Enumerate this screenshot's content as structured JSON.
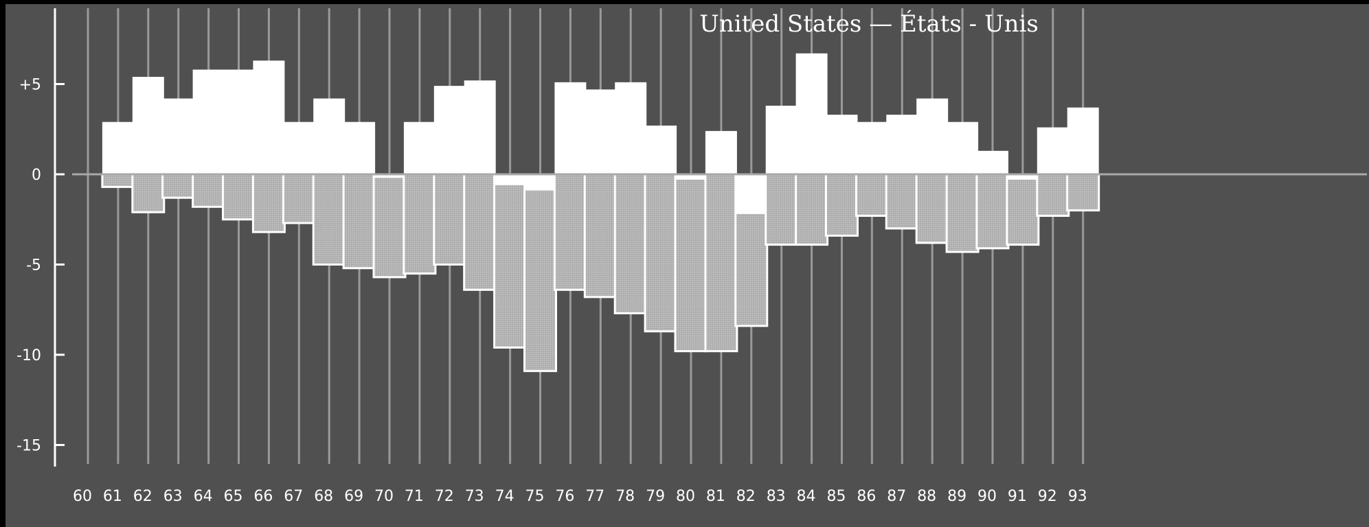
{
  "chart_data": {
    "type": "bar",
    "title": "United States — États - Unis",
    "xlabel": "",
    "ylabel": "",
    "ylim": [
      -15,
      9
    ],
    "yticks": [
      {
        "value": 5,
        "label": "+5"
      },
      {
        "value": 0,
        "label": "0"
      },
      {
        "value": -5,
        "label": "-5"
      },
      {
        "value": -10,
        "label": "-10"
      },
      {
        "value": -15,
        "label": "-15"
      }
    ],
    "categories": [
      "60",
      "61",
      "62",
      "63",
      "64",
      "65",
      "66",
      "67",
      "68",
      "69",
      "70",
      "71",
      "72",
      "73",
      "74",
      "75",
      "76",
      "77",
      "78",
      "79",
      "80",
      "81",
      "82",
      "83",
      "84",
      "85",
      "86",
      "87",
      "88",
      "89",
      "90",
      "91",
      "92",
      "93"
    ],
    "series": [
      {
        "style": "solid-white",
        "values": [
          0,
          2.9,
          5.4,
          4.2,
          5.8,
          5.8,
          6.3,
          2.9,
          4.2,
          2.9,
          -0.2,
          2.9,
          4.9,
          5.2,
          -0.6,
          -0.9,
          5.1,
          4.7,
          5.1,
          2.7,
          -0.3,
          2.4,
          -2.2,
          3.8,
          6.7,
          3.3,
          2.9,
          3.3,
          4.2,
          2.9,
          1.3,
          -0.3,
          2.6,
          3.7
        ]
      },
      {
        "style": "dotted-grey",
        "values": [
          0,
          -0.7,
          -2.1,
          -1.3,
          -1.8,
          -2.5,
          -3.2,
          -2.7,
          -5.0,
          -5.2,
          -5.7,
          -5.5,
          -5.0,
          -6.4,
          -9.6,
          -10.9,
          -6.4,
          -6.8,
          -7.7,
          -8.7,
          -9.8,
          -9.8,
          -8.4,
          -3.9,
          -3.9,
          -3.4,
          -2.3,
          -3.0,
          -3.8,
          -4.3,
          -4.1,
          -3.9,
          -2.3,
          -2.0
        ]
      }
    ],
    "colors": {
      "background": "#505050",
      "frame": "#000000",
      "solid_bar": "#ffffff",
      "dotted_bar": "#b4b4b4",
      "gridline": "#9a9a9a",
      "zero_line": "#a8a8a8"
    }
  }
}
